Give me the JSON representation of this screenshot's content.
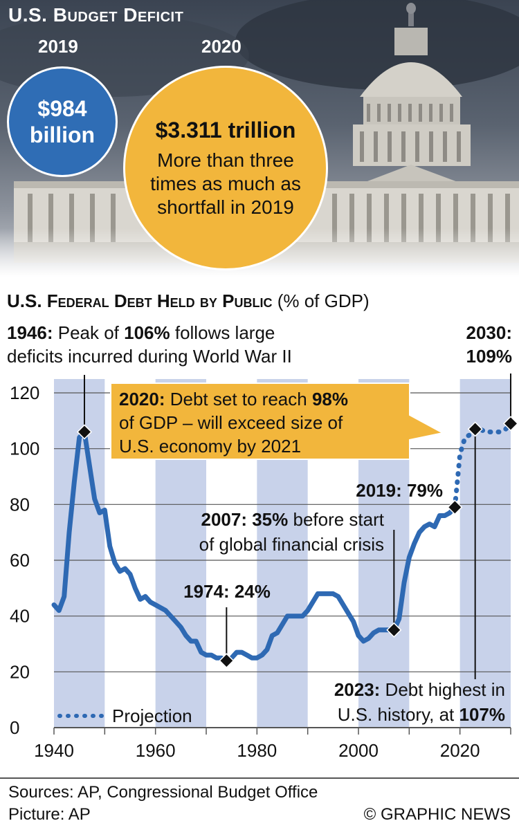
{
  "header": {
    "title": "U.S. Budget Deficit",
    "year_2019": "2019",
    "year_2020": "2020",
    "amount_2019": "$984 billion",
    "amount_2020": "$3.311 trillion",
    "note_2020": "More than three times as much as shortfall in 2019"
  },
  "chart_title": {
    "main": "U.S. Federal Debt Held by Public",
    "unit": "(% of GDP)"
  },
  "chart_data": {
    "type": "line",
    "title": "U.S. Federal Debt Held by Public (% of GDP)",
    "xlabel": "",
    "ylabel": "",
    "xlim": [
      1940,
      2030
    ],
    "ylim": [
      0,
      120
    ],
    "xticks": [
      1940,
      1960,
      1980,
      2000,
      2020
    ],
    "yticks": [
      0,
      20,
      40,
      60,
      80,
      100,
      120
    ],
    "grid": true,
    "legend": "bottom-left",
    "series": [
      {
        "name": "",
        "style": "solid",
        "x": [
          1940,
          1941,
          1942,
          1943,
          1944,
          1945,
          1946,
          1947,
          1948,
          1949,
          1950,
          1951,
          1952,
          1953,
          1954,
          1955,
          1956,
          1957,
          1958,
          1959,
          1960,
          1961,
          1962,
          1963,
          1964,
          1965,
          1966,
          1967,
          1968,
          1969,
          1970,
          1971,
          1972,
          1973,
          1974,
          1975,
          1976,
          1977,
          1978,
          1979,
          1980,
          1981,
          1982,
          1983,
          1984,
          1985,
          1986,
          1987,
          1988,
          1989,
          1990,
          1991,
          1992,
          1993,
          1994,
          1995,
          1996,
          1997,
          1998,
          1999,
          2000,
          2001,
          2002,
          2003,
          2004,
          2005,
          2006,
          2007,
          2008,
          2009,
          2010,
          2011,
          2012,
          2013,
          2014,
          2015,
          2016,
          2017,
          2018,
          2019
        ],
        "y": [
          44,
          42,
          47,
          70,
          88,
          104,
          106,
          94,
          82,
          77,
          78,
          65,
          59,
          56,
          57,
          55,
          50,
          46,
          47,
          45,
          44,
          43,
          42,
          40,
          38,
          36,
          33,
          31,
          31,
          27,
          26,
          26,
          25,
          25,
          24,
          25,
          27,
          27,
          26,
          25,
          25,
          26,
          28,
          33,
          34,
          37,
          40,
          40,
          40,
          40,
          42,
          45,
          48,
          48,
          48,
          48,
          47,
          44,
          41,
          38,
          33,
          31,
          32,
          34,
          35,
          35,
          35,
          35,
          39,
          52,
          61,
          66,
          70,
          72,
          73,
          72,
          76,
          76,
          77,
          79
        ]
      },
      {
        "name": "Projection",
        "style": "dotted",
        "x": [
          2019,
          2020,
          2021,
          2022,
          2023,
          2024,
          2025,
          2026,
          2027,
          2028,
          2029,
          2030
        ],
        "y": [
          79,
          98,
          104,
          105,
          107,
          107,
          106,
          106,
          106,
          106,
          107,
          109
        ]
      }
    ],
    "markers": [
      {
        "x": 1946,
        "y": 106
      },
      {
        "x": 1974,
        "y": 24
      },
      {
        "x": 2007,
        "y": 35
      },
      {
        "x": 2019,
        "y": 79
      },
      {
        "x": 2023,
        "y": 107
      },
      {
        "x": 2030,
        "y": 109
      }
    ],
    "legend_label": "Projection"
  },
  "annotations": {
    "peak_1946": {
      "bold1": "1946:",
      "t1": " Peak of ",
      "bold2": "106%",
      "t2": " follows large",
      "line2": "deficits incurred during World War II"
    },
    "y2030": {
      "line1": "2030:",
      "line2": "109%"
    },
    "callout_2020": {
      "bold1": "2020:",
      "t1": " Debt set to reach ",
      "bold2": "98%",
      "line2": "of GDP – will exceed size of",
      "line3": "U.S. economy by 2021"
    },
    "y2019": "2019: 79%",
    "y2007": {
      "bold": "2007: 35%",
      "t1": " before start",
      "line2": "of global financial crisis"
    },
    "y1974": "1974: 24%",
    "y2023": {
      "line1": "2023: Debt highest in",
      "bold_lead": "2023:",
      "rest1": " Debt highest in",
      "line2a": "U.S. history, at ",
      "line2b": "107%"
    }
  },
  "footer": {
    "sources": "Sources: AP, Congressional Budget Office",
    "picture": "Picture: AP",
    "credit": "© GRAPHIC NEWS"
  },
  "colors": {
    "line": "#2e69b3",
    "band": "#c8d2ea",
    "callout": "#f2b63c",
    "circle_2019": "#2f6db5",
    "circle_2020": "#f2b63c"
  }
}
